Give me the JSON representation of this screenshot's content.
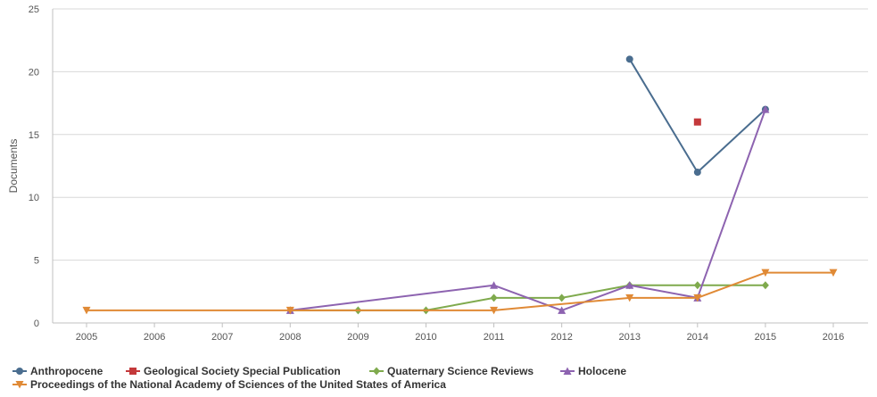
{
  "chart_data": {
    "type": "line",
    "ylabel": "Documents",
    "xlabel": "",
    "x": [
      2005,
      2006,
      2007,
      2008,
      2009,
      2010,
      2011,
      2012,
      2013,
      2014,
      2015,
      2016
    ],
    "xlim": [
      2005,
      2016
    ],
    "ylim": [
      0,
      25
    ],
    "yticks": [
      0,
      5,
      10,
      15,
      20,
      25
    ],
    "grid": "horizontal",
    "legend_position": "bottom-left",
    "series": [
      {
        "name": "Anthropocene",
        "color": "#4a6d8f",
        "marker": "circle",
        "points": [
          [
            2013,
            21
          ],
          [
            2014,
            12
          ],
          [
            2015,
            17
          ]
        ]
      },
      {
        "name": "Geological Society Special Publication",
        "color": "#c4393b",
        "marker": "square",
        "points": [
          [
            2014,
            16
          ]
        ]
      },
      {
        "name": "Quaternary Science Reviews",
        "color": "#7faa4d",
        "marker": "diamond",
        "points": [
          [
            2008,
            1
          ],
          [
            2009,
            1
          ],
          [
            2010,
            1
          ],
          [
            2011,
            2
          ],
          [
            2012,
            2
          ],
          [
            2013,
            3
          ],
          [
            2014,
            3
          ],
          [
            2015,
            3
          ]
        ]
      },
      {
        "name": "Holocene",
        "color": "#8d63b0",
        "marker": "triangle-up",
        "points": [
          [
            2008,
            1
          ],
          [
            2011,
            3
          ],
          [
            2012,
            1
          ],
          [
            2013,
            3
          ],
          [
            2014,
            2
          ],
          [
            2015,
            17
          ]
        ]
      },
      {
        "name": "Proceedings of the National Academy of Sciences of the United States of America",
        "color": "#e08a36",
        "marker": "triangle-down",
        "points": [
          [
            2005,
            1
          ],
          [
            2008,
            1
          ],
          [
            2011,
            1
          ],
          [
            2013,
            2
          ],
          [
            2014,
            2
          ],
          [
            2015,
            4
          ],
          [
            2016,
            4
          ]
        ]
      }
    ]
  }
}
